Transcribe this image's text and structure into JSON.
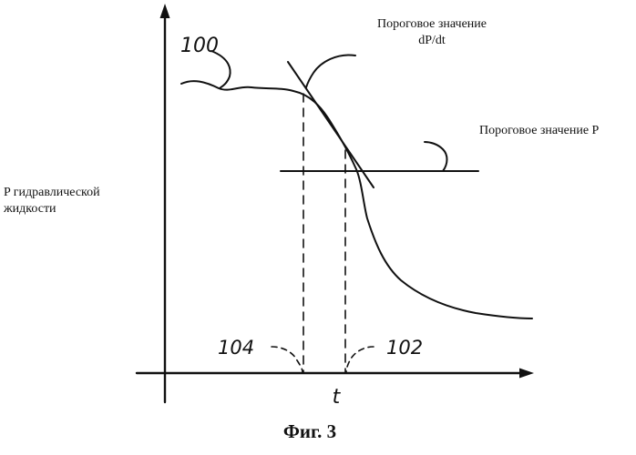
{
  "labels": {
    "y_axis_line1": "P гидравлической",
    "y_axis_line2": "жидкости",
    "x_axis": "t",
    "threshold_dpdt_line1": "Пороговое значение",
    "threshold_dpdt_line2": "dP/dt",
    "threshold_p": "Пороговое значение P",
    "ref_curve": "100",
    "ref_time_left": "104",
    "ref_time_right": "102",
    "caption": "Фиг. 3"
  },
  "colors": {
    "ink": "#111111",
    "background": "#ffffff"
  }
}
